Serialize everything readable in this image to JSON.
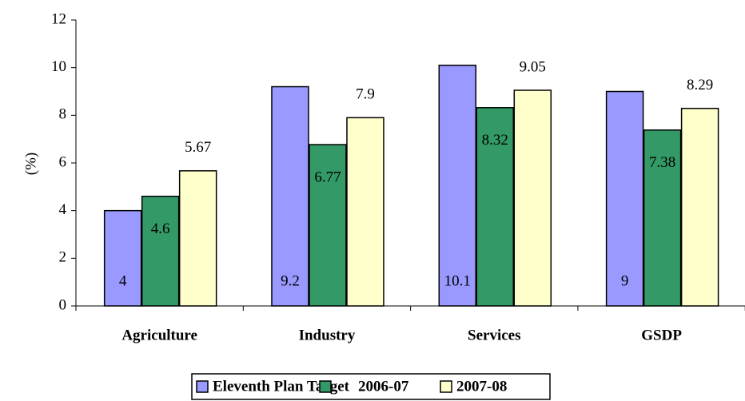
{
  "chart_data": {
    "type": "bar",
    "y_label": "(%)",
    "categories": [
      "Agriculture",
      "Industry",
      "Services",
      "GSDP"
    ],
    "series": [
      {
        "name": "Eleventh Plan Target",
        "color": "#9999ff",
        "values": [
          4,
          9.2,
          10.1,
          9
        ]
      },
      {
        "name": "2006-07",
        "color": "#339966",
        "values": [
          4.6,
          6.77,
          8.32,
          7.38
        ]
      },
      {
        "name": "2007-08",
        "color": "#ffffcc",
        "values": [
          5.67,
          7.9,
          9.05,
          8.29
        ]
      }
    ],
    "ylim": [
      0,
      12
    ],
    "yticks": [
      0,
      2,
      4,
      6,
      8,
      10,
      12
    ],
    "grid": false
  }
}
